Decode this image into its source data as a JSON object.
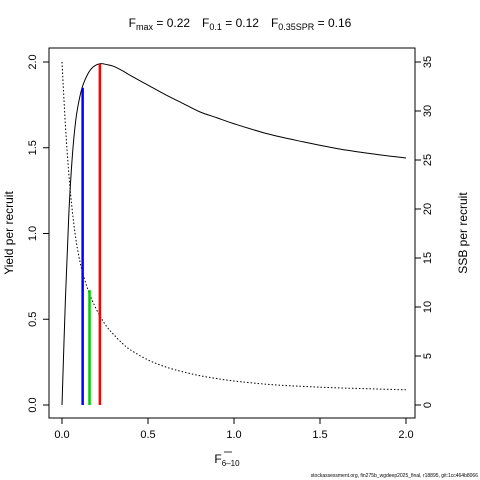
{
  "chart_data": {
    "type": "line",
    "title": {
      "fmax": {
        "main": "F",
        "sub": "max",
        "value": " = 0.22"
      },
      "f01": {
        "main": "F",
        "sub": "0.1",
        "value": " = 0.12"
      },
      "fspr": {
        "main": "F",
        "sub": "0.35SPR",
        "value": " = 0.16"
      }
    },
    "xlabel": {
      "main": "F",
      "sub": "6–10"
    },
    "ylabel_left": "Yield per recruit",
    "ylabel_right": "SSB per recruit",
    "xlim": [
      0,
      2
    ],
    "ylim_left": [
      0,
      2
    ],
    "ylim_right": [
      0,
      35
    ],
    "x_ticks": [
      0,
      0.5,
      1,
      1.5,
      2
    ],
    "x_tick_labels": [
      "0.0",
      "0.5",
      "1.0",
      "1.5",
      "2.0"
    ],
    "y_left_ticks": [
      0,
      0.5,
      1,
      1.5,
      2
    ],
    "y_left_tick_labels": [
      "0.0",
      "0.5",
      "1.0",
      "1.5",
      "2.0"
    ],
    "y_right_ticks": [
      0,
      5,
      10,
      15,
      20,
      25,
      30,
      35
    ],
    "y_right_tick_labels": [
      "0",
      "5",
      "10",
      "15",
      "20",
      "25",
      "30",
      "35"
    ],
    "grid": false,
    "series": [
      {
        "axis": "left",
        "style": "solid",
        "color": "#000000",
        "x": [
          0,
          0.02,
          0.04,
          0.06,
          0.08,
          0.1,
          0.12,
          0.15,
          0.18,
          0.22,
          0.26,
          0.3,
          0.35,
          0.4,
          0.5,
          0.6,
          0.7,
          0.8,
          0.9,
          1.0,
          1.2,
          1.4,
          1.6,
          1.8,
          2.0
        ],
        "y": [
          0,
          0.62,
          1.12,
          1.45,
          1.66,
          1.78,
          1.86,
          1.93,
          1.97,
          1.99,
          1.985,
          1.975,
          1.95,
          1.92,
          1.865,
          1.81,
          1.76,
          1.71,
          1.675,
          1.64,
          1.58,
          1.535,
          1.495,
          1.465,
          1.44
        ]
      },
      {
        "axis": "right",
        "style": "dotted",
        "color": "#000000",
        "x": [
          0,
          0.02,
          0.04,
          0.06,
          0.08,
          0.1,
          0.12,
          0.15,
          0.18,
          0.22,
          0.26,
          0.3,
          0.35,
          0.4,
          0.5,
          0.6,
          0.7,
          0.8,
          0.9,
          1.0,
          1.2,
          1.4,
          1.6,
          1.8,
          2.0
        ],
        "y": [
          35,
          28.5,
          23.5,
          19.8,
          17.0,
          15.0,
          13.5,
          11.8,
          10.5,
          9.1,
          8.0,
          7.2,
          6.3,
          5.6,
          4.6,
          3.9,
          3.4,
          3.0,
          2.7,
          2.45,
          2.1,
          1.9,
          1.75,
          1.65,
          1.55
        ]
      }
    ],
    "reference_lines": [
      {
        "name": "F0.1",
        "x": 0.12,
        "y": 1.85,
        "axis": "left",
        "color": "#0000ff"
      },
      {
        "name": "F0.35SPR",
        "x": 0.16,
        "y": 0.67,
        "axis": "left",
        "color": "#00cc00"
      },
      {
        "name": "Fmax",
        "x": 0.22,
        "y": 1.99,
        "axis": "left",
        "color": "#ff0000"
      }
    ]
  },
  "footer": "stockassessment.org, fin275b_wgdeep2025_final, r18895, git:1cc464b8066"
}
